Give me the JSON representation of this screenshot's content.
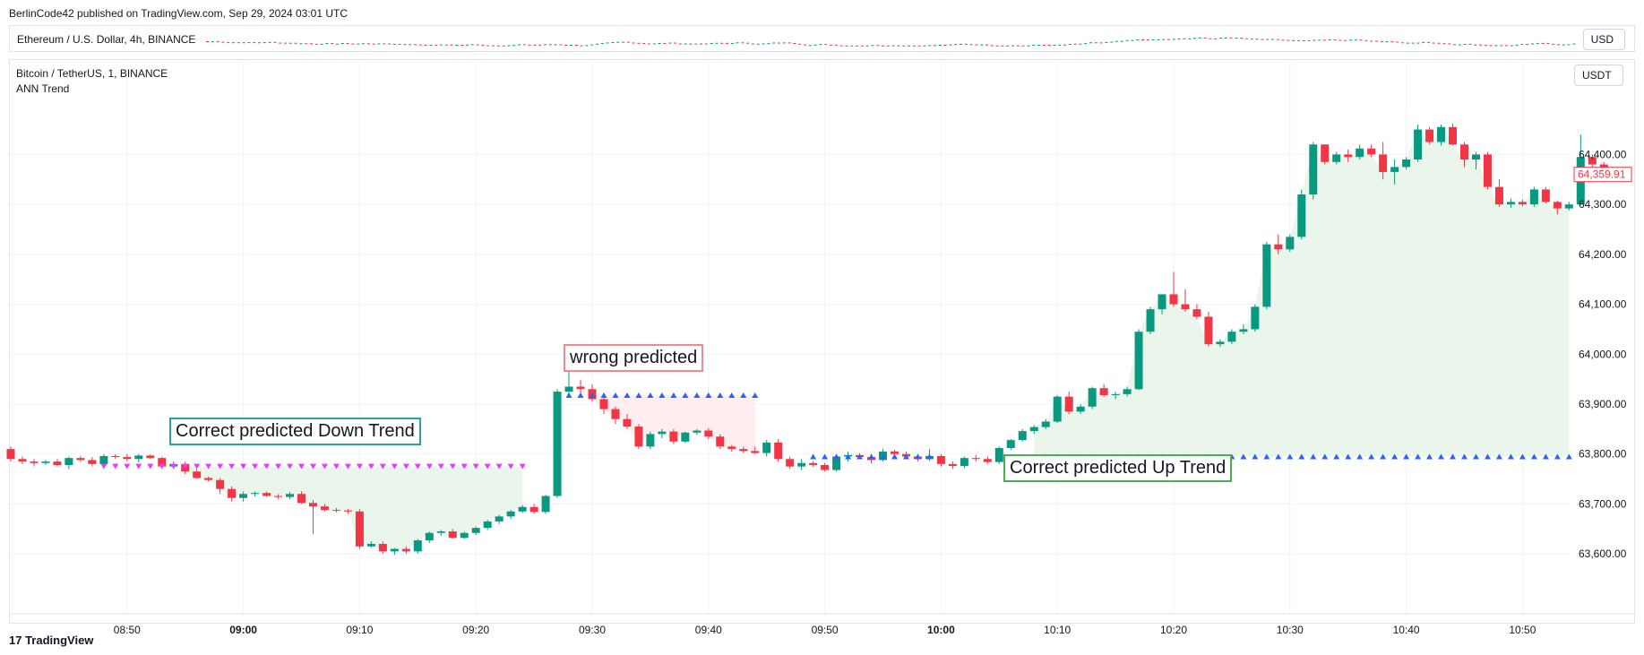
{
  "header": {
    "published": "BerlinCode42 published on TradingView.com, Sep 29, 2024 03:01 UTC"
  },
  "eth_pane": {
    "label": "Ethereum / U.S. Dollar, 4h, BINANCE",
    "currency": "USD"
  },
  "main_pane": {
    "symbol": "Bitcoin / TetherUS, 1, BINANCE",
    "indicator": "ANN Trend",
    "currency": "USDT",
    "last_price": "64,359.91"
  },
  "annotations": {
    "down": "Correct predicted Down Trend",
    "wrong": "wrong predicted",
    "up": "Correct predicted Up Trend"
  },
  "footer": {
    "brand": "TradingView"
  },
  "colors": {
    "up": "#089981",
    "down": "#f23645",
    "blue_marker": "#2962ff",
    "magenta_marker": "#e040fb",
    "fill_green": "#e8f5e9",
    "fill_red": "#ffebee"
  },
  "chart_data": {
    "type": "candlestick",
    "x_ticks": [
      {
        "label": "08:50",
        "bold": false,
        "bar": 10
      },
      {
        "label": "09:00",
        "bold": true,
        "bar": 20
      },
      {
        "label": "09:10",
        "bold": false,
        "bar": 30
      },
      {
        "label": "09:20",
        "bold": false,
        "bar": 40
      },
      {
        "label": "09:30",
        "bold": false,
        "bar": 50
      },
      {
        "label": "09:40",
        "bold": false,
        "bar": 60
      },
      {
        "label": "09:50",
        "bold": false,
        "bar": 70
      },
      {
        "label": "10:00",
        "bold": true,
        "bar": 80
      },
      {
        "label": "10:10",
        "bold": false,
        "bar": 90
      },
      {
        "label": "10:20",
        "bold": false,
        "bar": 100
      },
      {
        "label": "10:30",
        "bold": false,
        "bar": 110
      },
      {
        "label": "10:40",
        "bold": false,
        "bar": 120
      },
      {
        "label": "10:50",
        "bold": false,
        "bar": 130
      }
    ],
    "y_ticks": [
      63600,
      63700,
      63800,
      63900,
      64000,
      64100,
      64200,
      64300,
      64400
    ],
    "y_tick_labels": [
      "63,600.00",
      "63,700.00",
      "63,800.00",
      "63,900.00",
      "64,000.00",
      "64,100.00",
      "64,200.00",
      "64,300.00",
      "64,400.00"
    ],
    "ylim": [
      63480,
      64530
    ],
    "first_bar_time": "08:41",
    "candles": [
      [
        63810,
        63815,
        63785,
        63790
      ],
      [
        63790,
        63795,
        63780,
        63785
      ],
      [
        63785,
        63790,
        63775,
        63782
      ],
      [
        63782,
        63788,
        63778,
        63785
      ],
      [
        63785,
        63790,
        63775,
        63778
      ],
      [
        63778,
        63795,
        63770,
        63792
      ],
      [
        63792,
        63796,
        63784,
        63788
      ],
      [
        63788,
        63794,
        63775,
        63780
      ],
      [
        63780,
        63800,
        63775,
        63796
      ],
      [
        63796,
        63800,
        63790,
        63794
      ],
      [
        63794,
        63800,
        63785,
        63790
      ],
      [
        63790,
        63800,
        63783,
        63797
      ],
      [
        63797,
        63799,
        63790,
        63792
      ],
      [
        63792,
        63795,
        63770,
        63775
      ],
      [
        63775,
        63785,
        63770,
        63780
      ],
      [
        63780,
        63785,
        63760,
        63765
      ],
      [
        63765,
        63770,
        63750,
        63752
      ],
      [
        63752,
        63755,
        63745,
        63748
      ],
      [
        63748,
        63752,
        63720,
        63730
      ],
      [
        63730,
        63735,
        63705,
        63712
      ],
      [
        63712,
        63725,
        63705,
        63720
      ],
      [
        63720,
        63725,
        63715,
        63722
      ],
      [
        63722,
        63725,
        63714,
        63716
      ],
      [
        63716,
        63720,
        63710,
        63714
      ],
      [
        63714,
        63724,
        63710,
        63720
      ],
      [
        63720,
        63725,
        63700,
        63702
      ],
      [
        63702,
        63708,
        63640,
        63695
      ],
      [
        63695,
        63700,
        63685,
        63688
      ],
      [
        63688,
        63692,
        63683,
        63687
      ],
      [
        63687,
        63690,
        63680,
        63685
      ],
      [
        63685,
        63690,
        63610,
        63615
      ],
      [
        63615,
        63625,
        63612,
        63620
      ],
      [
        63620,
        63625,
        63600,
        63605
      ],
      [
        63605,
        63612,
        63598,
        63610
      ],
      [
        63610,
        63615,
        63600,
        63605
      ],
      [
        63605,
        63630,
        63600,
        63627
      ],
      [
        63627,
        63645,
        63622,
        63642
      ],
      [
        63642,
        63648,
        63636,
        63645
      ],
      [
        63645,
        63650,
        63630,
        63632
      ],
      [
        63632,
        63645,
        63630,
        63642
      ],
      [
        63642,
        63655,
        63638,
        63652
      ],
      [
        63652,
        63668,
        63648,
        63665
      ],
      [
        63665,
        63678,
        63660,
        63675
      ],
      [
        63675,
        63688,
        63670,
        63685
      ],
      [
        63685,
        63698,
        63682,
        63694
      ],
      [
        63694,
        63700,
        63680,
        63684
      ],
      [
        63684,
        63718,
        63680,
        63716
      ],
      [
        63716,
        63930,
        63712,
        63925
      ],
      [
        63925,
        63975,
        63915,
        63935
      ],
      [
        63935,
        63948,
        63920,
        63930
      ],
      [
        63930,
        63940,
        63905,
        63910
      ],
      [
        63910,
        63918,
        63880,
        63890
      ],
      [
        63890,
        63895,
        63860,
        63870
      ],
      [
        63870,
        63880,
        63850,
        63855
      ],
      [
        63855,
        63860,
        63810,
        63815
      ],
      [
        63815,
        63845,
        63810,
        63840
      ],
      [
        63840,
        63850,
        63832,
        63845
      ],
      [
        63845,
        63850,
        63820,
        63825
      ],
      [
        63825,
        63845,
        63822,
        63843
      ],
      [
        63843,
        63850,
        63838,
        63847
      ],
      [
        63847,
        63852,
        63830,
        63835
      ],
      [
        63835,
        63840,
        63810,
        63815
      ],
      [
        63815,
        63818,
        63805,
        63810
      ],
      [
        63810,
        63815,
        63802,
        63806
      ],
      [
        63806,
        63815,
        63800,
        63802
      ],
      [
        63802,
        63828,
        63795,
        63823
      ],
      [
        63823,
        63830,
        63785,
        63790
      ],
      [
        63790,
        63795,
        63770,
        63775
      ],
      [
        63775,
        63790,
        63768,
        63782
      ],
      [
        63782,
        63786,
        63774,
        63778
      ],
      [
        63778,
        63782,
        63765,
        63768
      ],
      [
        63768,
        63800,
        63765,
        63795
      ],
      [
        63795,
        63805,
        63785,
        63798
      ],
      [
        63798,
        63802,
        63790,
        63794
      ],
      [
        63794,
        63800,
        63782,
        63788
      ],
      [
        63788,
        63810,
        63785,
        63805
      ],
      [
        63805,
        63808,
        63795,
        63800
      ],
      [
        63800,
        63805,
        63790,
        63795
      ],
      [
        63795,
        63800,
        63785,
        63790
      ],
      [
        63790,
        63810,
        63786,
        63796
      ],
      [
        63796,
        63800,
        63775,
        63780
      ],
      [
        63780,
        63785,
        63770,
        63776
      ],
      [
        63776,
        63795,
        63772,
        63792
      ],
      [
        63792,
        63798,
        63785,
        63790
      ],
      [
        63790,
        63795,
        63780,
        63784
      ],
      [
        63784,
        63815,
        63780,
        63812
      ],
      [
        63812,
        63830,
        63808,
        63828
      ],
      [
        63828,
        63850,
        63825,
        63846
      ],
      [
        63846,
        63858,
        63840,
        63854
      ],
      [
        63854,
        63870,
        63850,
        63865
      ],
      [
        63865,
        63918,
        63862,
        63915
      ],
      [
        63915,
        63925,
        63880,
        63885
      ],
      [
        63885,
        63900,
        63880,
        63895
      ],
      [
        63895,
        63935,
        63890,
        63932
      ],
      [
        63932,
        63940,
        63915,
        63918
      ],
      [
        63918,
        63925,
        63910,
        63920
      ],
      [
        63920,
        63935,
        63915,
        63930
      ],
      [
        63930,
        64050,
        63928,
        64045
      ],
      [
        64045,
        64095,
        64040,
        64090
      ],
      [
        64090,
        64115,
        64080,
        64120
      ],
      [
        64120,
        64165,
        64095,
        64100
      ],
      [
        64100,
        64130,
        64085,
        64090
      ],
      [
        64090,
        64100,
        64070,
        64075
      ],
      [
        64075,
        64085,
        64015,
        64020
      ],
      [
        64020,
        64030,
        64015,
        64025
      ],
      [
        64025,
        64050,
        64020,
        64045
      ],
      [
        64045,
        64060,
        64040,
        64050
      ],
      [
        64050,
        64100,
        64045,
        64095
      ],
      [
        64095,
        64225,
        64090,
        64220
      ],
      [
        64220,
        64240,
        64200,
        64210
      ],
      [
        64210,
        64240,
        64205,
        64235
      ],
      [
        64235,
        64330,
        64230,
        64320
      ],
      [
        64320,
        64425,
        64310,
        64420
      ],
      [
        64420,
        64420,
        64380,
        64385
      ],
      [
        64385,
        64405,
        64380,
        64400
      ],
      [
        64400,
        64410,
        64385,
        64395
      ],
      [
        64395,
        64420,
        64390,
        64412
      ],
      [
        64412,
        64420,
        64395,
        64400
      ],
      [
        64400,
        64425,
        64350,
        64365
      ],
      [
        64365,
        64390,
        64340,
        64375
      ],
      [
        64375,
        64395,
        64370,
        64390
      ],
      [
        64390,
        64460,
        64385,
        64450
      ],
      [
        64450,
        64455,
        64420,
        64425
      ],
      [
        64425,
        64460,
        64418,
        64455
      ],
      [
        64455,
        64462,
        64418,
        64420
      ],
      [
        64420,
        64425,
        64375,
        64390
      ],
      [
        64390,
        64405,
        64370,
        64400
      ],
      [
        64400,
        64405,
        64330,
        64335
      ],
      [
        64335,
        64350,
        64295,
        64300
      ],
      [
        64300,
        64312,
        64293,
        64305
      ],
      [
        64305,
        64310,
        64296,
        64300
      ],
      [
        64300,
        64335,
        64295,
        64330
      ],
      [
        64330,
        64335,
        64302,
        64305
      ],
      [
        64305,
        64308,
        64280,
        64292
      ],
      [
        64292,
        64305,
        64288,
        64300
      ],
      [
        64300,
        64440,
        64298,
        64395
      ],
      [
        64395,
        64400,
        64365,
        64380
      ],
      [
        64380,
        64385,
        64350,
        64360
      ]
    ],
    "magenta_markers": {
      "from": 8,
      "to": 44,
      "price": 63775
    },
    "blue_markers": [
      {
        "from": 48,
        "to": 64,
        "price": 63918
      },
      {
        "from": 69,
        "to": 79,
        "price": 63795
      },
      {
        "from": 86,
        "to": 134,
        "price": 63795
      }
    ],
    "fill_areas": [
      {
        "from": 15,
        "to": 44,
        "baseline": 63775,
        "color": "green"
      },
      {
        "from": 49,
        "to": 64,
        "baseline": 63918,
        "color": "red"
      },
      {
        "from": 88,
        "to": 134,
        "baseline": 63795,
        "color": "green"
      }
    ]
  }
}
